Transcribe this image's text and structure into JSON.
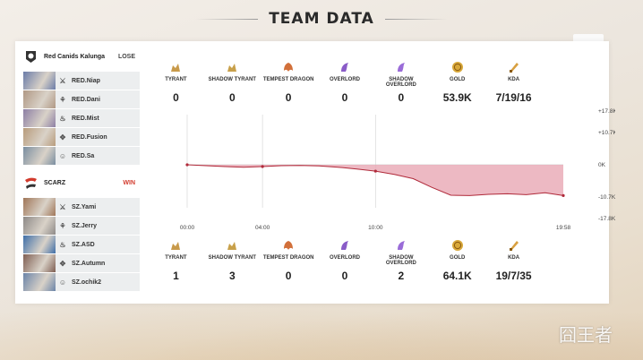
{
  "header": {
    "title": "TEAM DATA"
  },
  "teams": [
    {
      "name": "Red Canids Kalunga",
      "result": "LOSE",
      "logo_color": "#333333",
      "players": [
        {
          "name": "RED.Niap",
          "role": "sword-icon",
          "avatar": "#6b7ca8"
        },
        {
          "name": "RED.Dani",
          "role": "jungle-icon",
          "avatar": "#b09884"
        },
        {
          "name": "RED.Mist",
          "role": "mid-icon",
          "avatar": "#8d7fa4"
        },
        {
          "name": "RED.Fusion",
          "role": "marksman-icon",
          "avatar": "#b89c7c"
        },
        {
          "name": "RED.Sa",
          "role": "support-icon",
          "avatar": "#7a8ea0"
        }
      ]
    },
    {
      "name": "SCARZ",
      "result": "WIN",
      "logo_color": "#d23a2c",
      "players": [
        {
          "name": "SZ.Yami",
          "role": "sword-icon",
          "avatar": "#a07658"
        },
        {
          "name": "SZ.Jerry",
          "role": "jungle-icon",
          "avatar": "#8e8a88"
        },
        {
          "name": "SZ.ASD",
          "role": "mid-icon",
          "avatar": "#3f6fa8"
        },
        {
          "name": "SZ.Autumn",
          "role": "marksman-icon",
          "avatar": "#7f5e52"
        },
        {
          "name": "SZ.ochik2",
          "role": "support-icon",
          "avatar": "#6b84a8"
        }
      ]
    }
  ],
  "stat_labels": [
    "TYRANT",
    "SHADOW TYRANT",
    "TEMPEST DRAGON",
    "OVERLORD",
    "SHADOW OVERLORD",
    "GOLD",
    "KDA"
  ],
  "stat_icons": [
    {
      "name": "tyrant-icon",
      "color": "#c89a4a"
    },
    {
      "name": "shadow-tyrant-icon",
      "color": "#c8a04a"
    },
    {
      "name": "tempest-dragon-icon",
      "color": "#d2703a"
    },
    {
      "name": "overlord-icon",
      "color": "#8a5cc8"
    },
    {
      "name": "shadow-overlord-icon",
      "color": "#9a6cd8"
    },
    {
      "name": "gold-icon",
      "color": "#d8a83a"
    },
    {
      "name": "kda-icon",
      "color": "#d8a040"
    }
  ],
  "team1_stats": [
    "0",
    "0",
    "0",
    "0",
    "0",
    "53.9K",
    "7/19/16"
  ],
  "team2_stats": [
    "1",
    "3",
    "0",
    "0",
    "2",
    "64.1K",
    "19/7/35"
  ],
  "chart_data": {
    "type": "area",
    "x_labels": [
      "00:00",
      "04:00",
      "10:00",
      "19:58"
    ],
    "y_tick_labels": [
      "+17.8K",
      "+10.7K",
      "0K",
      "-10.7K",
      "-17.8K"
    ],
    "y_ticks": [
      17.8,
      10.7,
      0,
      -10.7,
      -17.8
    ],
    "ylim": [
      -17.8,
      17.8
    ],
    "xlim": [
      0,
      19.97
    ],
    "series": [
      {
        "x": [
          0,
          1,
          2,
          3,
          4,
          5,
          6,
          7,
          8,
          9,
          10,
          11,
          12,
          13,
          14,
          15,
          16,
          17,
          18,
          19,
          19.97
        ],
        "y": [
          0,
          -0.3,
          -0.6,
          -0.8,
          -0.6,
          -0.3,
          -0.2,
          -0.4,
          -0.8,
          -1.4,
          -2.1,
          -3.2,
          -4.6,
          -7.5,
          -10.1,
          -10.2,
          -9.8,
          -9.6,
          -9.9,
          -9.3,
          -10.2
        ]
      }
    ],
    "line_color": "#b02a3a",
    "fill_color": "#e9a8b4"
  },
  "watermark": "囧王者"
}
